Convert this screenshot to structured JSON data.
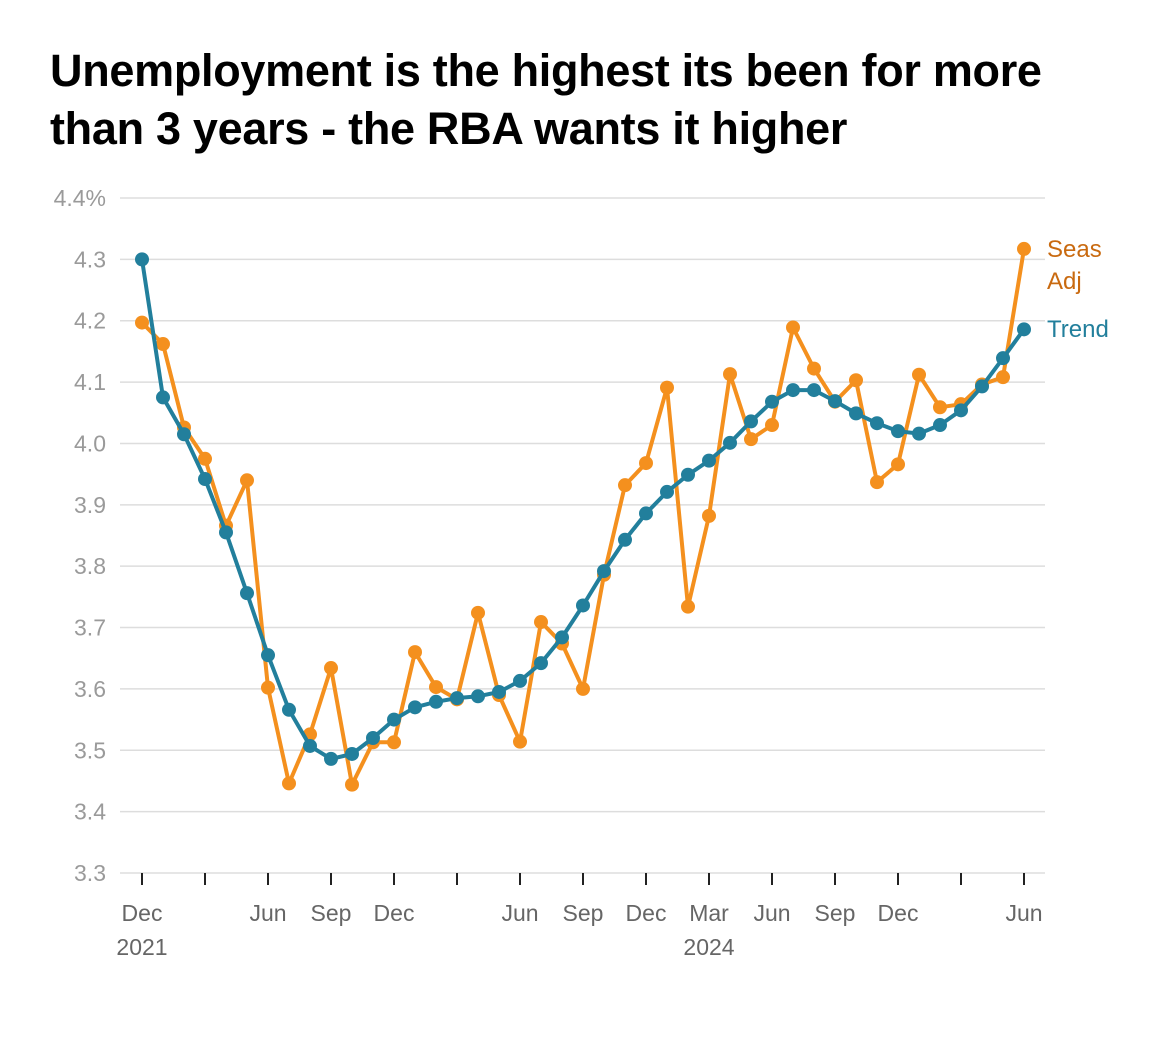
{
  "title": "Unemployment is the highest its been for more than 3 years - the RBA wants it higher",
  "chart_data": {
    "type": "line",
    "ylim": [
      3.3,
      4.4
    ],
    "y_ticks": [
      {
        "value": 4.4,
        "label": "4.4%"
      },
      {
        "value": 4.3,
        "label": "4.3"
      },
      {
        "value": 4.2,
        "label": "4.2"
      },
      {
        "value": 4.1,
        "label": "4.1"
      },
      {
        "value": 4.0,
        "label": "4.0"
      },
      {
        "value": 3.9,
        "label": "3.9"
      },
      {
        "value": 3.8,
        "label": "3.8"
      },
      {
        "value": 3.7,
        "label": "3.7"
      },
      {
        "value": 3.6,
        "label": "3.6"
      },
      {
        "value": 3.5,
        "label": "3.5"
      },
      {
        "value": 3.4,
        "label": "3.4"
      },
      {
        "value": 3.3,
        "label": "3.3"
      }
    ],
    "x": [
      "2021-12",
      "2022-01",
      "2022-02",
      "2022-03",
      "2022-04",
      "2022-05",
      "2022-06",
      "2022-07",
      "2022-08",
      "2022-09",
      "2022-10",
      "2022-11",
      "2022-12",
      "2023-01",
      "2023-02",
      "2023-03",
      "2023-04",
      "2023-05",
      "2023-06",
      "2023-07",
      "2023-08",
      "2023-09",
      "2023-10",
      "2023-11",
      "2023-12",
      "2024-01",
      "2024-02",
      "2024-03",
      "2024-04",
      "2024-05",
      "2024-06",
      "2024-07",
      "2024-08",
      "2024-09",
      "2024-10",
      "2024-11",
      "2024-12",
      "2025-01",
      "2025-02",
      "2025-03",
      "2025-04",
      "2025-05",
      "2025-06"
    ],
    "x_ticks": [
      {
        "x": "2021-12",
        "label": "Dec",
        "sublabel": "2021"
      },
      {
        "x": "2022-03",
        "label": ""
      },
      {
        "x": "2022-06",
        "label": "Jun"
      },
      {
        "x": "2022-09",
        "label": "Sep"
      },
      {
        "x": "2022-12",
        "label": "Dec"
      },
      {
        "x": "2023-03",
        "label": ""
      },
      {
        "x": "2023-06",
        "label": "Jun"
      },
      {
        "x": "2023-09",
        "label": "Sep"
      },
      {
        "x": "2023-12",
        "label": "Dec"
      },
      {
        "x": "2024-03",
        "label": "Mar",
        "sublabel": "2024"
      },
      {
        "x": "2024-06",
        "label": "Jun"
      },
      {
        "x": "2024-09",
        "label": "Sep"
      },
      {
        "x": "2024-12",
        "label": "Dec"
      },
      {
        "x": "2025-03",
        "label": ""
      },
      {
        "x": "2025-06",
        "label": "Jun"
      }
    ],
    "series": [
      {
        "name": "Seas Adj",
        "legend_lines": [
          "Seas",
          "Adj"
        ],
        "color": "#f4901e",
        "label_color": "#c96a10",
        "values": [
          4.197,
          4.162,
          4.026,
          3.975,
          3.866,
          3.94,
          3.602,
          3.446,
          3.526,
          3.634,
          3.444,
          3.513,
          3.513,
          3.66,
          3.603,
          3.583,
          3.724,
          3.59,
          3.514,
          3.709,
          3.674,
          3.6,
          3.786,
          3.932,
          3.968,
          4.091,
          3.734,
          3.882,
          4.113,
          4.007,
          4.03,
          4.189,
          4.122,
          4.068,
          4.103,
          3.937,
          3.966,
          4.112,
          4.059,
          4.064,
          4.096,
          4.108,
          4.317
        ]
      },
      {
        "name": "Trend",
        "legend_lines": [
          "Trend"
        ],
        "color": "#227f9c",
        "label_color": "#227f9c",
        "values": [
          4.3,
          4.075,
          4.015,
          3.942,
          3.855,
          3.756,
          3.655,
          3.566,
          3.507,
          3.486,
          3.494,
          3.52,
          3.55,
          3.57,
          3.579,
          3.585,
          3.588,
          3.595,
          3.613,
          3.642,
          3.684,
          3.736,
          3.792,
          3.843,
          3.886,
          3.921,
          3.949,
          3.972,
          4.001,
          4.036,
          4.068,
          4.087,
          4.087,
          4.069,
          4.049,
          4.033,
          4.02,
          4.016,
          4.03,
          4.054,
          4.093,
          4.139,
          4.186
        ]
      }
    ]
  }
}
